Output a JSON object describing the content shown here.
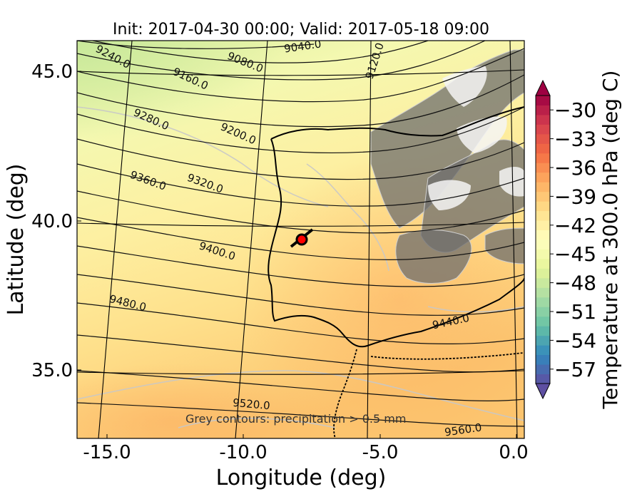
{
  "chart_data": {
    "type": "heatmap",
    "title": "Init: 2017-04-30 00:00; Valid: 2017-05-18 09:00",
    "xlabel": "Longitude (deg)",
    "ylabel": "Latitude (deg)",
    "x_ticks": [
      "-15.0",
      "-10.0",
      "-5.0",
      "0.0"
    ],
    "y_ticks": [
      "35.0",
      "40.0",
      "45.0"
    ],
    "xlim": [
      -16.0,
      0.3
    ],
    "ylim": [
      32.8,
      46.0
    ],
    "colorbar": {
      "label": "Temperature at 300.0 hPa (deg C)",
      "ticks": [
        "−57",
        "−54",
        "−51",
        "−48",
        "−45",
        "−42",
        "−39",
        "−36",
        "−33",
        "−30"
      ],
      "min": -58.5,
      "max": -28.5,
      "extend": "both",
      "colormap": [
        "#5e4fa2",
        "#3288bd",
        "#66c2a5",
        "#abdda4",
        "#e6f598",
        "#ffffbf",
        "#fee08b",
        "#fdae61",
        "#f46d43",
        "#d53e4f",
        "#9e0142"
      ]
    },
    "contour_labels": [
      "9040.0",
      "9080.0",
      "9120.0",
      "9160.0",
      "9200.0",
      "9240.0",
      "9280.0",
      "9320.0",
      "9360.0",
      "9400.0",
      "9440.0",
      "9480.0",
      "9520.0",
      "9560.0"
    ],
    "annotation": "Grey contours: precipitation > 0.5 mm",
    "marker": {
      "lon": -7.7,
      "lat": 39.3,
      "color": "#ff0000"
    }
  }
}
